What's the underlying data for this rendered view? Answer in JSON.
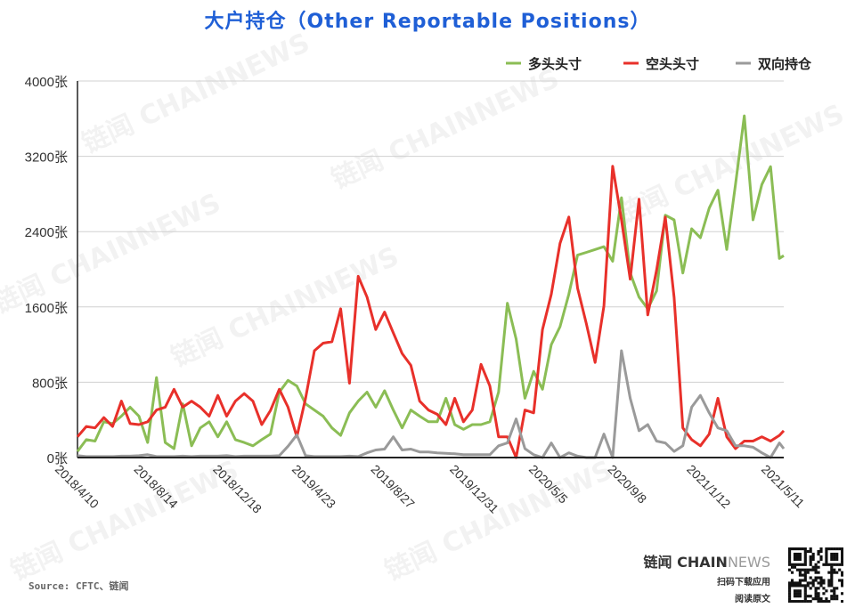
{
  "title": "大户持仓（Other Reportable Positions）",
  "source": "Source: CFTC、链闻",
  "brand": {
    "logo_main": "链闻 CHAIN",
    "logo_accent": "NEWS",
    "line2": "扫码下载应用",
    "line3": "阅读原文"
  },
  "watermark": "链闻 CHAINNEWS",
  "chart_data": {
    "type": "line",
    "title": "大户持仓（Other Reportable Positions）",
    "ylim": [
      0,
      4000
    ],
    "y_ticks": [
      0,
      800,
      1600,
      2400,
      3200,
      4000
    ],
    "y_tick_suffix": "张",
    "grid": "horizontal",
    "legend_position": "top-right",
    "x_tick_labels": [
      "2018/4/10",
      "2018/8/14",
      "2018/12/18",
      "2019/4/23",
      "2019/8/27",
      "2019/12/31",
      "2020/5/5",
      "2020/9/8",
      "2021/1/12",
      "2021/5/11"
    ],
    "x": [
      "2018/4/10",
      "2018/4/24",
      "2018/5/8",
      "2018/5/22",
      "2018/6/5",
      "2018/6/19",
      "2018/7/3",
      "2018/7/17",
      "2018/7/31",
      "2018/8/14",
      "2018/8/28",
      "2018/9/11",
      "2018/9/25",
      "2018/10/9",
      "2018/10/23",
      "2018/11/6",
      "2018/11/20",
      "2018/12/4",
      "2018/12/18",
      "2019/1/1",
      "2019/1/15",
      "2019/1/29",
      "2019/2/12",
      "2019/2/26",
      "2019/3/12",
      "2019/3/26",
      "2019/4/9",
      "2019/4/23",
      "2019/5/7",
      "2019/5/21",
      "2019/6/4",
      "2019/6/18",
      "2019/7/2",
      "2019/7/16",
      "2019/7/30",
      "2019/8/13",
      "2019/8/27",
      "2019/9/10",
      "2019/9/24",
      "2019/10/8",
      "2019/10/22",
      "2019/11/5",
      "2019/11/19",
      "2019/12/3",
      "2019/12/17",
      "2019/12/31",
      "2020/1/14",
      "2020/1/28",
      "2020/2/11",
      "2020/2/25",
      "2020/3/10",
      "2020/3/24",
      "2020/4/7",
      "2020/4/21",
      "2020/5/5",
      "2020/5/19",
      "2020/6/2",
      "2020/6/16",
      "2020/6/30",
      "2020/7/14",
      "2020/7/28",
      "2020/8/11",
      "2020/8/25",
      "2020/9/8",
      "2020/9/22",
      "2020/10/6",
      "2020/10/20",
      "2020/11/3",
      "2020/11/17",
      "2020/12/1",
      "2020/12/15",
      "2020/12/29",
      "2021/1/12",
      "2021/1/26",
      "2021/2/9",
      "2021/2/23",
      "2021/3/9",
      "2021/3/23",
      "2021/4/6",
      "2021/4/20",
      "2021/5/4",
      "2021/5/11"
    ],
    "series": [
      {
        "name": "多头头寸",
        "color": "#8bbd55",
        "values": [
          65,
          190,
          175,
          380,
          360,
          440,
          535,
          440,
          160,
          850,
          160,
          95,
          570,
          125,
          315,
          380,
          220,
          380,
          190,
          160,
          125,
          190,
          250,
          695,
          820,
          760,
          570,
          505,
          440,
          315,
          235,
          475,
          600,
          695,
          535,
          710,
          505,
          315,
          505,
          440,
          380,
          380,
          630,
          350,
          300,
          350,
          350,
          380,
          695,
          1640,
          1260,
          630,
          915,
          725,
          1200,
          1390,
          1735,
          2150,
          2180,
          2210,
          2240,
          2085,
          2760,
          1960,
          1705,
          1580,
          1770,
          2575,
          2525,
          1960,
          2430,
          2335,
          2650,
          2840,
          2210,
          2900,
          3630,
          2525,
          2900,
          3090,
          2115,
          2145
        ]
      },
      {
        "name": "空头头寸",
        "color": "#e8302a",
        "values": [
          220,
          330,
          315,
          425,
          330,
          600,
          360,
          350,
          380,
          505,
          535,
          725,
          535,
          600,
          535,
          440,
          660,
          440,
          600,
          680,
          600,
          350,
          500,
          725,
          535,
          220,
          630,
          1135,
          1215,
          1230,
          1580,
          790,
          1925,
          1705,
          1360,
          1545,
          1325,
          1105,
          980,
          600,
          505,
          460,
          350,
          630,
          380,
          505,
          990,
          760,
          220,
          220,
          0,
          505,
          475,
          1360,
          1735,
          2275,
          2555,
          1800,
          1420,
          1010,
          1610,
          3095,
          2525,
          1895,
          2745,
          1515,
          1990,
          2555,
          1700,
          315,
          190,
          125,
          250,
          630,
          220,
          95,
          175,
          175,
          220,
          175,
          235,
          285
        ]
      },
      {
        "name": "双向持仓",
        "color": "#9a9a9a",
        "values": [
          20,
          10,
          10,
          10,
          10,
          15,
          15,
          20,
          30,
          10,
          10,
          10,
          15,
          10,
          15,
          15,
          15,
          20,
          10,
          15,
          15,
          15,
          15,
          20,
          120,
          240,
          20,
          10,
          10,
          10,
          10,
          15,
          10,
          50,
          80,
          90,
          220,
          80,
          90,
          60,
          60,
          50,
          45,
          40,
          30,
          30,
          30,
          30,
          125,
          155,
          410,
          95,
          30,
          0,
          155,
          0,
          50,
          15,
          0,
          0,
          250,
          0,
          1135,
          630,
          285,
          350,
          175,
          155,
          65,
          125,
          535,
          660,
          475,
          315,
          285,
          125,
          125,
          110,
          50,
          0,
          155,
          95
        ]
      }
    ]
  }
}
